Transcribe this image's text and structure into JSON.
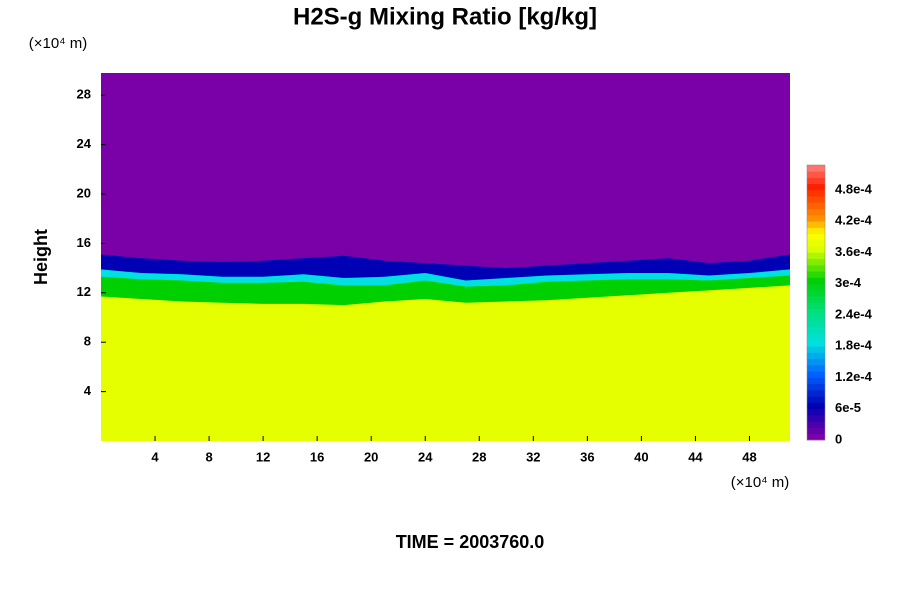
{
  "chart_data": {
    "type": "contour",
    "title": "H2S-g Mixing Ratio [kg/kg]",
    "ylabel": "Height",
    "y_unit": "(×10⁴ m)",
    "x_unit": "(×10⁴ m)",
    "footer": "TIME = 2003760.0",
    "xlim": [
      0,
      51
    ],
    "ylim": [
      0,
      29.8
    ],
    "xticks": [
      4,
      8,
      12,
      16,
      20,
      24,
      28,
      32,
      36,
      40,
      44,
      48
    ],
    "yticks": [
      4,
      8,
      12,
      16,
      20,
      24,
      28
    ],
    "x": [
      0,
      3,
      6,
      9,
      12,
      15,
      18,
      21,
      24,
      27,
      30,
      33,
      36,
      39,
      42,
      45,
      48,
      51
    ],
    "background_level": 0,
    "layers": [
      {
        "level": 6e-05,
        "tops": [
          15.1,
          14.8,
          14.6,
          14.5,
          14.6,
          14.8,
          15.0,
          14.6,
          14.4,
          14.2,
          14.0,
          14.2,
          14.4,
          14.6,
          14.8,
          14.4,
          14.6,
          15.1
        ]
      },
      {
        "level": 0.00018,
        "tops": [
          13.9,
          13.6,
          13.5,
          13.3,
          13.3,
          13.5,
          13.2,
          13.3,
          13.6,
          13.0,
          13.2,
          13.4,
          13.5,
          13.6,
          13.6,
          13.4,
          13.6,
          13.9
        ]
      },
      {
        "level": 0.0003,
        "tops": [
          13.3,
          13.1,
          13.0,
          12.8,
          12.8,
          12.9,
          12.6,
          12.6,
          13.0,
          12.5,
          12.6,
          12.9,
          13.0,
          13.1,
          13.1,
          13.0,
          13.2,
          13.4
        ]
      },
      {
        "level": 0.00037,
        "tops": [
          11.7,
          11.5,
          11.3,
          11.2,
          11.1,
          11.1,
          11.0,
          11.3,
          11.5,
          11.2,
          11.3,
          11.4,
          11.6,
          11.8,
          12.0,
          12.2,
          12.4,
          12.6
        ]
      }
    ],
    "clim": [
      0,
      0.000528
    ],
    "levels": 44,
    "colormap": [
      {
        "value": 0,
        "color": "#7a00a8"
      },
      {
        "value": 6e-05,
        "color": "#0000b4"
      },
      {
        "value": 0.00012,
        "color": "#0060ff"
      },
      {
        "value": 0.00018,
        "color": "#00e0e0"
      },
      {
        "value": 0.00024,
        "color": "#00e080"
      },
      {
        "value": 0.0003,
        "color": "#00d000"
      },
      {
        "value": 0.00036,
        "color": "#d8ff00"
      },
      {
        "value": 0.00039,
        "color": "#ffff00"
      },
      {
        "value": 0.00042,
        "color": "#ff9000"
      },
      {
        "value": 0.00048,
        "color": "#ff2000"
      },
      {
        "value": 0.000528,
        "color": "#ff9090"
      }
    ],
    "cticks": [
      0,
      {
        "value": 6e-05,
        "label": "6e-5"
      },
      {
        "value": 0.00012,
        "label": "1.2e-4"
      },
      {
        "value": 0.00018,
        "label": "1.8e-4"
      },
      {
        "value": 0.00024,
        "label": "2.4e-4"
      },
      {
        "value": 0.0003,
        "label": "3e-4"
      },
      {
        "value": 0.00036,
        "label": "3.6e-4"
      },
      {
        "value": 0.00042,
        "label": "4.2e-4"
      },
      {
        "value": 0.00048,
        "label": "4.8e-4"
      }
    ]
  }
}
